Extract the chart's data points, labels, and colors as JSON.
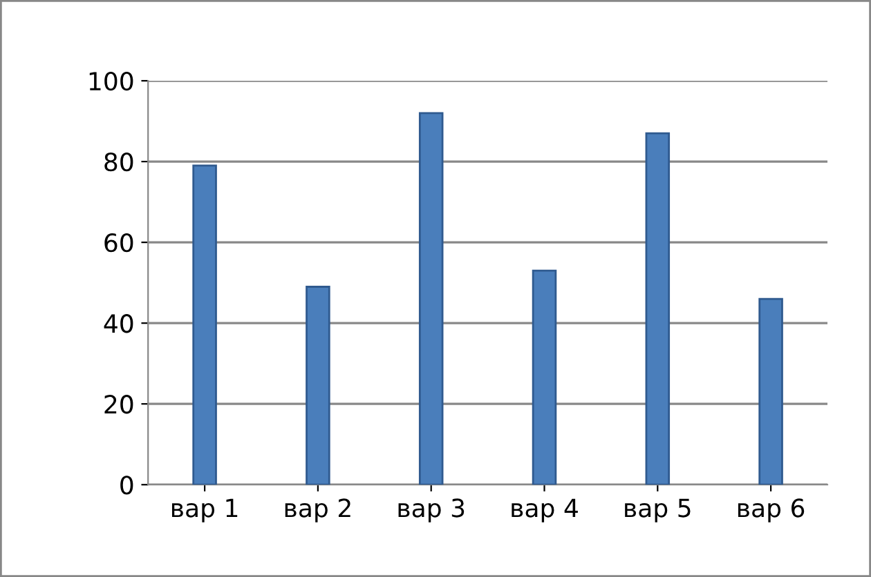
{
  "chart_data": {
    "type": "bar",
    "categories": [
      "вар 1",
      "вар 2",
      "вар 3",
      "вар 4",
      "вар 5",
      "вар 6"
    ],
    "values": [
      79,
      49,
      92,
      53,
      87,
      46
    ],
    "color": "#4a7ebb",
    "ylim": [
      0,
      100
    ],
    "yticks": [
      0,
      20,
      40,
      60,
      80,
      100
    ],
    "grid": "y"
  }
}
